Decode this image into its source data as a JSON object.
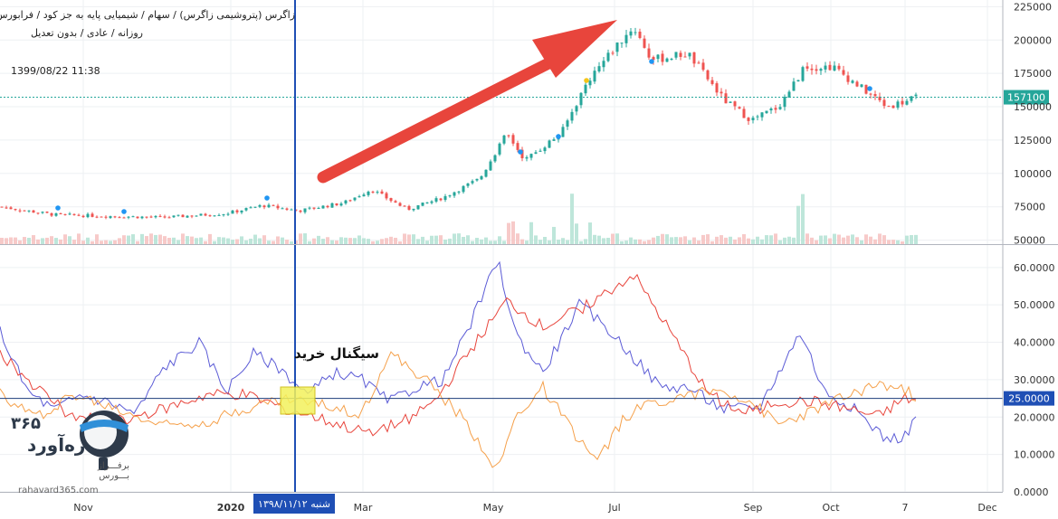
{
  "header": {
    "symbol_line": "زاگرس (پتروشیمی زاگرس) / سهام / شیمیایی پایه به جز کود / فرابورس",
    "detail_line": "روزانه / عادی / بدون تعدیل",
    "timestamp": "1399/08/22 11:38"
  },
  "annotation": {
    "signal_label": "سیگنال خرید",
    "crosshair_date_label": "شنبه ۱۳۹۸/۱۱/۱۲"
  },
  "watermark": {
    "number": "۳۶۵",
    "name": "ره‌آورد",
    "tagline": "برفـــراز بـــورس",
    "site": "rahavard365.com"
  },
  "colors": {
    "up": "#26a69a",
    "down": "#ef5350",
    "adx": "#5b5bd6",
    "plus_di": "#e8453c",
    "minus_di": "#f5a04a",
    "crosshair": "#1f4fb5",
    "arrow": "#e8453c"
  },
  "chart_data": [
    {
      "type": "candlestick",
      "y_ticks": [
        225000,
        200000,
        175000,
        150000,
        125000,
        100000,
        75000,
        50000
      ],
      "ylim": [
        47000,
        230000
      ],
      "last_price": 157100,
      "anchor_closes": [
        {
          "x": 0,
          "y": 75000
        },
        {
          "x": 60,
          "y": 69000
        },
        {
          "x": 120,
          "y": 68000
        },
        {
          "x": 180,
          "y": 67000
        },
        {
          "x": 250,
          "y": 70000
        },
        {
          "x": 290,
          "y": 76000
        },
        {
          "x": 330,
          "y": 72000
        },
        {
          "x": 380,
          "y": 78000
        },
        {
          "x": 410,
          "y": 88000
        },
        {
          "x": 450,
          "y": 73000
        },
        {
          "x": 490,
          "y": 82000
        },
        {
          "x": 530,
          "y": 96000
        },
        {
          "x": 560,
          "y": 130000
        },
        {
          "x": 580,
          "y": 110000
        },
        {
          "x": 620,
          "y": 130000
        },
        {
          "x": 650,
          "y": 170000
        },
        {
          "x": 680,
          "y": 195000
        },
        {
          "x": 700,
          "y": 210000
        },
        {
          "x": 720,
          "y": 185000
        },
        {
          "x": 760,
          "y": 190000
        },
        {
          "x": 800,
          "y": 155000
        },
        {
          "x": 830,
          "y": 140000
        },
        {
          "x": 860,
          "y": 150000
        },
        {
          "x": 890,
          "y": 180000
        },
        {
          "x": 920,
          "y": 180000
        },
        {
          "x": 960,
          "y": 160000
        },
        {
          "x": 980,
          "y": 150000
        },
        {
          "x": 1015,
          "y": 157100
        }
      ],
      "volume_spikes": [
        630,
        884,
        888
      ]
    },
    {
      "type": "line",
      "y_ticks": [
        60.0,
        50.0,
        40.0,
        30.0,
        25.0,
        20.0,
        10.0,
        0.0
      ],
      "ylim": [
        0,
        66
      ],
      "level": 25.0,
      "series": [
        {
          "line": "adx",
          "points": [
            {
              "x": 0,
              "y": 43
            },
            {
              "x": 30,
              "y": 27
            },
            {
              "x": 60,
              "y": 22
            },
            {
              "x": 90,
              "y": 26
            },
            {
              "x": 120,
              "y": 24
            },
            {
              "x": 150,
              "y": 21
            },
            {
              "x": 180,
              "y": 33
            },
            {
              "x": 220,
              "y": 40
            },
            {
              "x": 250,
              "y": 27
            },
            {
              "x": 280,
              "y": 37
            },
            {
              "x": 310,
              "y": 33
            },
            {
              "x": 340,
              "y": 26
            },
            {
              "x": 370,
              "y": 32
            },
            {
              "x": 400,
              "y": 30
            },
            {
              "x": 430,
              "y": 24
            },
            {
              "x": 460,
              "y": 28
            },
            {
              "x": 490,
              "y": 30
            },
            {
              "x": 520,
              "y": 45
            },
            {
              "x": 550,
              "y": 62
            },
            {
              "x": 570,
              "y": 42
            },
            {
              "x": 600,
              "y": 32
            },
            {
              "x": 640,
              "y": 50
            },
            {
              "x": 670,
              "y": 44
            },
            {
              "x": 700,
              "y": 36
            },
            {
              "x": 730,
              "y": 28
            },
            {
              "x": 760,
              "y": 28
            },
            {
              "x": 800,
              "y": 22
            },
            {
              "x": 840,
              "y": 23
            },
            {
              "x": 885,
              "y": 43
            },
            {
              "x": 910,
              "y": 27
            },
            {
              "x": 940,
              "y": 23
            },
            {
              "x": 980,
              "y": 14
            },
            {
              "x": 1000,
              "y": 15
            },
            {
              "x": 1015,
              "y": 21
            }
          ]
        },
        {
          "line": "plus_di",
          "points": [
            {
              "x": 0,
              "y": 37
            },
            {
              "x": 40,
              "y": 28
            },
            {
              "x": 80,
              "y": 20
            },
            {
              "x": 130,
              "y": 19
            },
            {
              "x": 180,
              "y": 22
            },
            {
              "x": 230,
              "y": 26
            },
            {
              "x": 270,
              "y": 26
            },
            {
              "x": 320,
              "y": 22
            },
            {
              "x": 360,
              "y": 19
            },
            {
              "x": 400,
              "y": 16
            },
            {
              "x": 440,
              "y": 18
            },
            {
              "x": 480,
              "y": 24
            },
            {
              "x": 520,
              "y": 38
            },
            {
              "x": 560,
              "y": 51
            },
            {
              "x": 600,
              "y": 44
            },
            {
              "x": 650,
              "y": 50
            },
            {
              "x": 700,
              "y": 58
            },
            {
              "x": 740,
              "y": 43
            },
            {
              "x": 780,
              "y": 27
            },
            {
              "x": 820,
              "y": 21
            },
            {
              "x": 860,
              "y": 24
            },
            {
              "x": 900,
              "y": 24
            },
            {
              "x": 940,
              "y": 22
            },
            {
              "x": 970,
              "y": 20
            },
            {
              "x": 1000,
              "y": 25
            },
            {
              "x": 1015,
              "y": 24
            }
          ]
        },
        {
          "line": "minus_di",
          "points": [
            {
              "x": 0,
              "y": 26
            },
            {
              "x": 40,
              "y": 20
            },
            {
              "x": 80,
              "y": 26
            },
            {
              "x": 130,
              "y": 22
            },
            {
              "x": 180,
              "y": 18
            },
            {
              "x": 230,
              "y": 19
            },
            {
              "x": 280,
              "y": 23
            },
            {
              "x": 320,
              "y": 25
            },
            {
              "x": 360,
              "y": 23
            },
            {
              "x": 400,
              "y": 21
            },
            {
              "x": 430,
              "y": 37
            },
            {
              "x": 470,
              "y": 30
            },
            {
              "x": 510,
              "y": 20
            },
            {
              "x": 550,
              "y": 6
            },
            {
              "x": 570,
              "y": 20
            },
            {
              "x": 600,
              "y": 28
            },
            {
              "x": 630,
              "y": 17
            },
            {
              "x": 660,
              "y": 8
            },
            {
              "x": 690,
              "y": 20
            },
            {
              "x": 720,
              "y": 24
            },
            {
              "x": 760,
              "y": 26
            },
            {
              "x": 800,
              "y": 27
            },
            {
              "x": 830,
              "y": 24
            },
            {
              "x": 860,
              "y": 18
            },
            {
              "x": 900,
              "y": 22
            },
            {
              "x": 940,
              "y": 26
            },
            {
              "x": 970,
              "y": 29
            },
            {
              "x": 1000,
              "y": 27
            },
            {
              "x": 1015,
              "y": 25
            }
          ]
        }
      ],
      "x_tick_labels": [
        "Nov",
        "2020",
        "Mar",
        "May",
        "Jul",
        "Sep",
        "Oct",
        "7",
        "Dec"
      ]
    }
  ]
}
